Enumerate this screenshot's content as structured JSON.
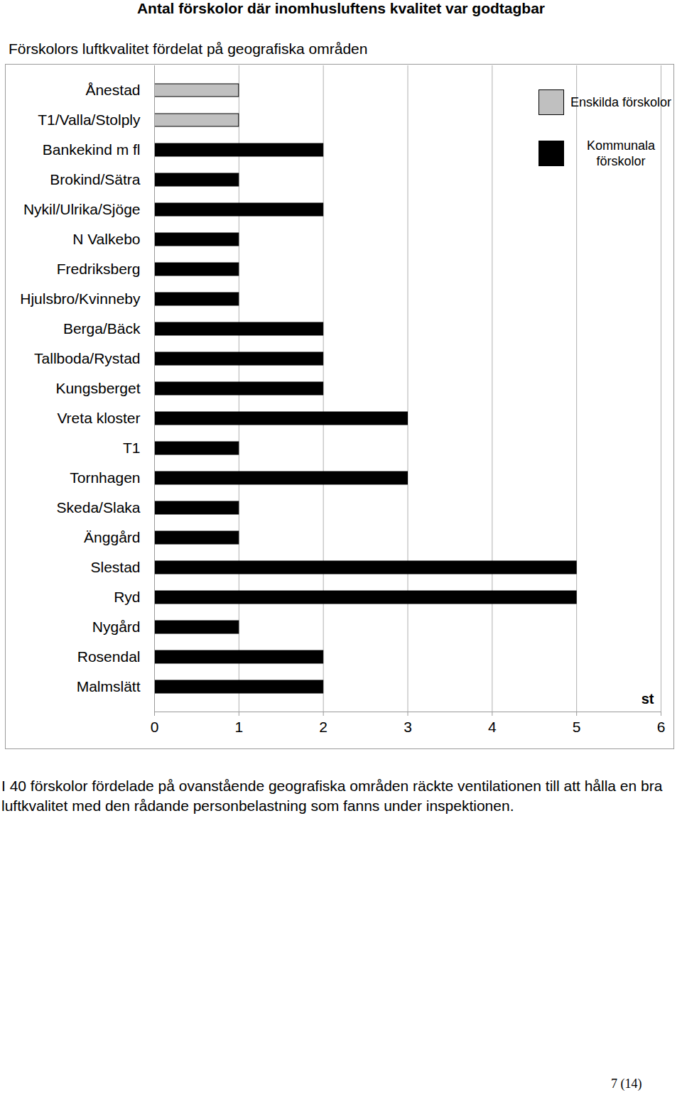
{
  "chart_data": {
    "type": "bar",
    "orientation": "horizontal",
    "title": "Antal förskolor där inomhusluftens kvalitet var godtagbar",
    "subtitle": "Förskolors luftkvalitet fördelat på geografiska områden",
    "x_label": "st",
    "categories": [
      "Ånestad",
      "T1/Valla/Stolply",
      "Bankekind m fl",
      "Brokind/Sätra",
      "Nykil/Ulrika/Sjöge",
      "N Valkebo",
      "Fredriksberg",
      "Hjulsbro/Kvinneby",
      "Berga/Bäck",
      "Tallboda/Rystad",
      "Kungsberget",
      "Vreta kloster",
      "T1",
      "Tornhagen",
      "Skeda/Slaka",
      "Änggård",
      "Slestad",
      "Ryd",
      "Nygård",
      "Rosendal",
      "Malmslätt"
    ],
    "series": [
      {
        "name": "Enskilda förskolor",
        "color": "#c0c0c0",
        "values": [
          1,
          1,
          null,
          null,
          null,
          null,
          null,
          null,
          null,
          null,
          null,
          null,
          null,
          null,
          null,
          null,
          null,
          null,
          null,
          null,
          null
        ]
      },
      {
        "name": "Kommunala förskolor",
        "color": "#000000",
        "values": [
          null,
          null,
          2,
          1,
          2,
          1,
          1,
          1,
          2,
          2,
          2,
          3,
          1,
          3,
          1,
          1,
          5,
          5,
          1,
          2,
          2
        ]
      }
    ],
    "xlim": [
      0,
      6
    ],
    "xticks": [
      0,
      1,
      2,
      3,
      4,
      5,
      6
    ],
    "grid": true,
    "legend": "top-right"
  },
  "caption": "I 40 förskolor fördelade på ovanstående geografiska områden räckte ventilationen till att hålla en bra luftkvalitet med den rådande personbelastning som fanns under inspektionen.",
  "page_number": "7 (14)"
}
